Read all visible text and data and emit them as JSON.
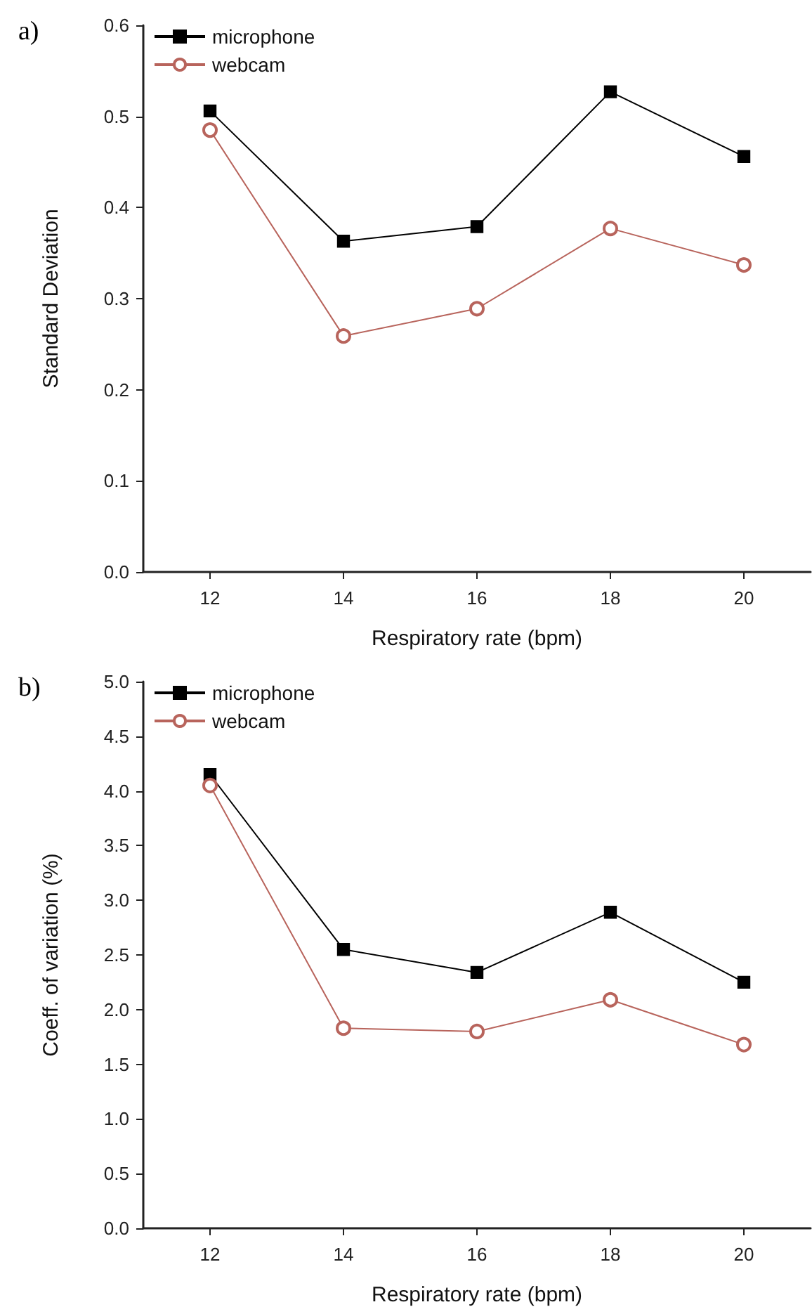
{
  "chart_data": [
    {
      "type": "line",
      "title": "a)",
      "xlabel": "Respiratory rate (bpm)",
      "ylabel": "Standard Deviation",
      "x": [
        12,
        14,
        16,
        18,
        20
      ],
      "xlim": [
        11,
        21
      ],
      "xticks": [
        12,
        14,
        16,
        18,
        20
      ],
      "ylim": [
        0,
        0.6
      ],
      "yticks": [
        {
          "value": 0,
          "label": "0.0"
        },
        0.1,
        0.2,
        0.3,
        0.4,
        0.5,
        0.6
      ],
      "legend": "top left",
      "grid": false,
      "series": [
        {
          "name": "microphone",
          "color": "#000000",
          "marker": "square",
          "values": [
            0.506,
            0.363,
            0.379,
            0.527,
            0.456
          ]
        },
        {
          "name": "webcam",
          "color": "#b8645c",
          "marker": "circle",
          "values": [
            0.485,
            0.259,
            0.289,
            0.377,
            0.337
          ]
        }
      ]
    },
    {
      "type": "line",
      "title": "b)",
      "xlabel": "Respiratory rate (bpm)",
      "ylabel": "Coeff. of variation (%)",
      "x": [
        12,
        14,
        16,
        18,
        20
      ],
      "xlim": [
        11,
        21
      ],
      "xticks": [
        12,
        14,
        16,
        18,
        20
      ],
      "ylim": [
        0,
        5
      ],
      "yticks": [
        {
          "value": 0,
          "label": "0.0"
        },
        0.5,
        {
          "value": 1,
          "label": "1.0"
        },
        1.5,
        {
          "value": 2,
          "label": "2.0"
        },
        2.5,
        {
          "value": 3,
          "label": "3.0"
        },
        3.5,
        {
          "value": 4,
          "label": "4.0"
        },
        4.5,
        {
          "value": 5,
          "label": "5.0"
        }
      ],
      "legend": "top left",
      "grid": false,
      "series": [
        {
          "name": "microphone",
          "color": "#000000",
          "marker": "square",
          "values": [
            4.15,
            2.55,
            2.34,
            2.89,
            2.25
          ]
        },
        {
          "name": "webcam",
          "color": "#b8645c",
          "marker": "circle",
          "values": [
            4.05,
            1.83,
            1.8,
            2.09,
            1.68
          ]
        }
      ]
    }
  ]
}
